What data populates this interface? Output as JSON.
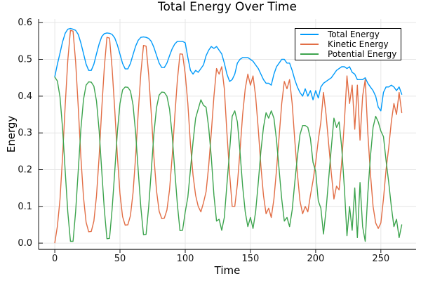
{
  "chart_data": {
    "type": "line",
    "title": "Total Energy Over Time",
    "xlabel": "Time",
    "ylabel": "Energy",
    "xlim": [
      -12.4,
      277
    ],
    "ylim": [
      -0.017,
      0.61
    ],
    "grid": true,
    "legend_position": "top-right",
    "grid_color": "#e6e6e6",
    "axis_color": "#1a1a1a",
    "tick_label_color": "#111111",
    "xticks": [
      0,
      50,
      100,
      150,
      200,
      250
    ],
    "xtick_labels": [
      "0",
      "50",
      "100",
      "150",
      "200",
      "250"
    ],
    "yticks": [
      0.0,
      0.1,
      0.2,
      0.3,
      0.4,
      0.5,
      0.6
    ],
    "ytick_labels": [
      "0.0",
      "0.1",
      "0.2",
      "0.3",
      "0.4",
      "0.5",
      "0.6"
    ],
    "x": [
      0,
      2,
      4,
      6,
      8,
      10,
      12,
      14,
      16,
      18,
      20,
      22,
      24,
      26,
      28,
      30,
      32,
      34,
      36,
      38,
      40,
      42,
      44,
      46,
      48,
      50,
      52,
      54,
      56,
      58,
      60,
      62,
      64,
      66,
      68,
      70,
      72,
      74,
      76,
      78,
      80,
      82,
      84,
      86,
      88,
      90,
      92,
      94,
      96,
      98,
      100,
      102,
      104,
      106,
      108,
      110,
      112,
      114,
      116,
      118,
      120,
      122,
      124,
      126,
      128,
      130,
      132,
      134,
      136,
      138,
      140,
      142,
      144,
      146,
      148,
      150,
      152,
      154,
      156,
      158,
      160,
      162,
      164,
      166,
      168,
      170,
      172,
      174,
      176,
      178,
      180,
      182,
      184,
      186,
      188,
      190,
      192,
      194,
      196,
      198,
      200,
      202,
      204,
      206,
      208,
      210,
      212,
      214,
      216,
      218,
      220,
      222,
      224,
      226,
      228,
      230,
      232,
      234,
      236,
      238,
      240,
      242,
      244,
      246,
      248,
      250,
      252,
      254,
      256,
      258,
      260,
      262,
      264,
      266
    ],
    "series": [
      {
        "name": "Total Energy",
        "color": "#009AFA",
        "values": [
          0.453,
          0.487,
          0.517,
          0.548,
          0.571,
          0.582,
          0.584,
          0.582,
          0.579,
          0.568,
          0.545,
          0.516,
          0.487,
          0.47,
          0.47,
          0.487,
          0.515,
          0.542,
          0.562,
          0.57,
          0.572,
          0.571,
          0.568,
          0.558,
          0.539,
          0.514,
          0.489,
          0.474,
          0.474,
          0.489,
          0.513,
          0.536,
          0.552,
          0.56,
          0.561,
          0.56,
          0.557,
          0.549,
          0.533,
          0.511,
          0.49,
          0.478,
          0.478,
          0.49,
          0.51,
          0.529,
          0.542,
          0.549,
          0.549,
          0.549,
          0.545,
          0.505,
          0.47,
          0.46,
          0.47,
          0.465,
          0.475,
          0.485,
          0.51,
          0.525,
          0.535,
          0.53,
          0.535,
          0.525,
          0.515,
          0.49,
          0.46,
          0.44,
          0.445,
          0.46,
          0.49,
          0.5,
          0.505,
          0.505,
          0.505,
          0.5,
          0.495,
          0.485,
          0.475,
          0.46,
          0.445,
          0.435,
          0.435,
          0.43,
          0.46,
          0.48,
          0.49,
          0.5,
          0.5,
          0.49,
          0.49,
          0.47,
          0.445,
          0.425,
          0.41,
          0.4,
          0.42,
          0.4,
          0.415,
          0.39,
          0.415,
          0.395,
          0.425,
          0.435,
          0.44,
          0.445,
          0.45,
          0.46,
          0.47,
          0.475,
          0.48,
          0.48,
          0.475,
          0.48,
          0.465,
          0.46,
          0.445,
          0.445,
          0.445,
          0.45,
          0.435,
          0.425,
          0.415,
          0.4,
          0.37,
          0.36,
          0.41,
          0.425,
          0.425,
          0.43,
          0.425,
          0.415,
          0.425,
          0.405
        ]
      },
      {
        "name": "Kinetic Energy",
        "color": "#E26E46",
        "values": [
          0.001,
          0.046,
          0.119,
          0.236,
          0.374,
          0.497,
          0.579,
          0.577,
          0.493,
          0.371,
          0.236,
          0.125,
          0.057,
          0.031,
          0.032,
          0.06,
          0.128,
          0.236,
          0.365,
          0.479,
          0.56,
          0.558,
          0.475,
          0.361,
          0.236,
          0.134,
          0.072,
          0.049,
          0.05,
          0.075,
          0.137,
          0.236,
          0.355,
          0.462,
          0.538,
          0.536,
          0.458,
          0.352,
          0.236,
          0.142,
          0.087,
          0.067,
          0.068,
          0.09,
          0.145,
          0.236,
          0.345,
          0.444,
          0.515,
          0.514,
          0.46,
          0.38,
          0.27,
          0.185,
          0.13,
          0.1,
          0.085,
          0.11,
          0.14,
          0.21,
          0.3,
          0.4,
          0.475,
          0.46,
          0.48,
          0.42,
          0.3,
          0.19,
          0.1,
          0.1,
          0.16,
          0.25,
          0.35,
          0.42,
          0.46,
          0.43,
          0.455,
          0.4,
          0.31,
          0.21,
          0.13,
          0.08,
          0.095,
          0.07,
          0.12,
          0.2,
          0.29,
          0.38,
          0.44,
          0.42,
          0.445,
          0.38,
          0.28,
          0.19,
          0.115,
          0.08,
          0.1,
          0.085,
          0.13,
          0.17,
          0.22,
          0.28,
          0.33,
          0.41,
          0.35,
          0.27,
          0.19,
          0.12,
          0.155,
          0.145,
          0.22,
          0.33,
          0.455,
          0.38,
          0.43,
          0.31,
          0.43,
          0.28,
          0.4,
          0.445,
          0.3,
          0.19,
          0.1,
          0.055,
          0.04,
          0.055,
          0.12,
          0.2,
          0.26,
          0.33,
          0.38,
          0.35,
          0.41,
          0.355
        ]
      },
      {
        "name": "Potential Energy",
        "color": "#3DA44E",
        "values": [
          0.452,
          0.441,
          0.398,
          0.312,
          0.197,
          0.085,
          0.005,
          0.005,
          0.086,
          0.197,
          0.309,
          0.391,
          0.43,
          0.439,
          0.438,
          0.427,
          0.387,
          0.306,
          0.197,
          0.091,
          0.012,
          0.013,
          0.093,
          0.197,
          0.303,
          0.38,
          0.417,
          0.425,
          0.424,
          0.414,
          0.376,
          0.3,
          0.197,
          0.098,
          0.023,
          0.024,
          0.099,
          0.197,
          0.297,
          0.369,
          0.403,
          0.411,
          0.41,
          0.4,
          0.365,
          0.293,
          0.197,
          0.105,
          0.034,
          0.035,
          0.085,
          0.125,
          0.2,
          0.275,
          0.34,
          0.365,
          0.39,
          0.375,
          0.37,
          0.315,
          0.235,
          0.13,
          0.06,
          0.065,
          0.035,
          0.07,
          0.16,
          0.25,
          0.345,
          0.36,
          0.33,
          0.25,
          0.155,
          0.085,
          0.045,
          0.07,
          0.04,
          0.085,
          0.165,
          0.25,
          0.315,
          0.355,
          0.34,
          0.36,
          0.34,
          0.28,
          0.2,
          0.12,
          0.06,
          0.07,
          0.045,
          0.09,
          0.165,
          0.235,
          0.295,
          0.32,
          0.32,
          0.315,
          0.285,
          0.22,
          0.195,
          0.115,
          0.095,
          0.025,
          0.09,
          0.175,
          0.26,
          0.34,
          0.315,
          0.33,
          0.26,
          0.15,
          0.02,
          0.1,
          0.035,
          0.15,
          0.015,
          0.165,
          0.045,
          0.005,
          0.135,
          0.235,
          0.315,
          0.345,
          0.33,
          0.305,
          0.29,
          0.225,
          0.165,
          0.1,
          0.045,
          0.065,
          0.015,
          0.05
        ]
      }
    ]
  }
}
